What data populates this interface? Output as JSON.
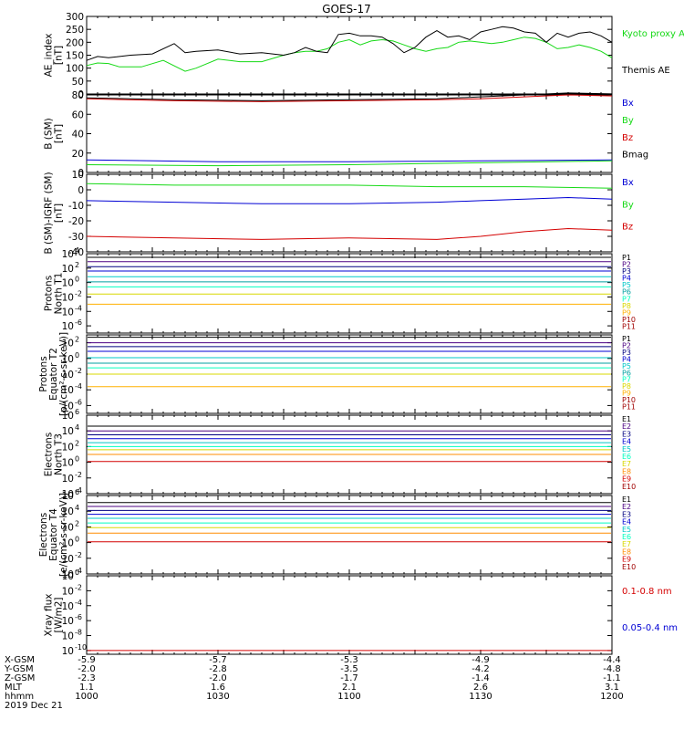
{
  "title": "GOES-17",
  "footer": {
    "row_labels": [
      "X-GSM",
      "Y-GSM",
      "Z-GSM",
      "MLT",
      "hhmm",
      "2019 Dec 21"
    ],
    "columns": [
      {
        "x_gsm": "-5.9",
        "y_gsm": "-2.0",
        "z_gsm": "-2.3",
        "mlt": "1.1",
        "hhmm": "1000"
      },
      {
        "x_gsm": "-5.7",
        "y_gsm": "-2.8",
        "z_gsm": "-2.0",
        "mlt": "1.6",
        "hhmm": "1030"
      },
      {
        "x_gsm": "-5.3",
        "y_gsm": "-3.5",
        "z_gsm": "-1.7",
        "mlt": "2.1",
        "hhmm": "1100"
      },
      {
        "x_gsm": "-4.9",
        "y_gsm": "-4.2",
        "z_gsm": "-1.4",
        "mlt": "2.6",
        "hhmm": "1130"
      },
      {
        "x_gsm": "-4.4",
        "y_gsm": "-4.8",
        "z_gsm": "-1.1",
        "mlt": "3.1",
        "hhmm": "1200"
      }
    ]
  },
  "colors": {
    "black": "#000000",
    "red": "#d40000",
    "green": "#16d916",
    "blue": "#0000d4",
    "navy": "#000080",
    "purple": "#4b0082",
    "cyan": "#00c8c8",
    "teal": "#00a0a0",
    "aqua": "#00ffc0",
    "yellow": "#d8d800",
    "orange": "#ff8c00",
    "gold": "#ffb000",
    "darkred": "#a00000",
    "maroon": "#800000"
  },
  "chart_data": [
    {
      "type": "line",
      "ylabel": [
        "AE_index",
        "[nT]"
      ],
      "ylim": [
        0,
        300
      ],
      "yticks": [
        "0",
        "50",
        "100",
        "150",
        "200",
        "250",
        "300"
      ],
      "series": [
        {
          "name": "Kyoto proxy AE",
          "color": "green",
          "x": [
            0,
            5,
            10,
            15,
            25,
            35,
            45,
            50,
            60,
            70,
            80,
            90,
            95,
            100,
            105,
            110,
            115,
            120,
            125,
            130,
            135,
            140,
            145,
            150,
            155,
            160,
            165,
            170,
            175,
            180,
            185,
            190,
            195,
            200,
            205,
            210,
            215,
            220,
            225,
            230,
            235,
            240
          ],
          "y": [
            110,
            120,
            118,
            105,
            105,
            130,
            88,
            100,
            135,
            125,
            125,
            150,
            160,
            165,
            165,
            175,
            200,
            210,
            190,
            205,
            210,
            205,
            190,
            175,
            165,
            175,
            180,
            200,
            205,
            200,
            195,
            200,
            210,
            220,
            215,
            200,
            175,
            180,
            190,
            180,
            165,
            140
          ]
        },
        {
          "name": "Themis AE",
          "color": "black",
          "x": [
            0,
            5,
            10,
            20,
            30,
            40,
            45,
            50,
            60,
            70,
            80,
            90,
            95,
            100,
            105,
            110,
            115,
            120,
            125,
            130,
            135,
            140,
            145,
            150,
            155,
            160,
            165,
            170,
            175,
            180,
            185,
            190,
            195,
            200,
            205,
            210,
            215,
            220,
            225,
            230,
            235,
            240
          ],
          "y": [
            130,
            145,
            140,
            150,
            155,
            195,
            160,
            165,
            170,
            155,
            160,
            150,
            160,
            180,
            165,
            160,
            230,
            235,
            225,
            225,
            220,
            195,
            160,
            180,
            220,
            245,
            220,
            225,
            210,
            240,
            250,
            260,
            255,
            240,
            235,
            200,
            235,
            220,
            235,
            240,
            225,
            200
          ]
        }
      ]
    },
    {
      "type": "line",
      "ylabel": [
        "B (SM)",
        "[nT]"
      ],
      "ylim": [
        0,
        80
      ],
      "yticks": [
        "0",
        "20",
        "40",
        "60",
        "80"
      ],
      "series": [
        {
          "name": "Bx",
          "color": "blue",
          "x": [
            0,
            60,
            120,
            180,
            240
          ],
          "y": [
            13,
            11,
            11,
            12,
            13
          ]
        },
        {
          "name": "By",
          "color": "green",
          "x": [
            0,
            60,
            120,
            180,
            240
          ],
          "y": [
            8,
            7,
            8,
            10,
            12
          ]
        },
        {
          "name": "Bz",
          "color": "red",
          "x": [
            0,
            40,
            80,
            120,
            160,
            180,
            200,
            220,
            240
          ],
          "y": [
            76,
            74,
            73,
            74,
            75,
            76,
            78,
            80,
            79
          ]
        },
        {
          "name": "Bmag",
          "color": "black",
          "x": [
            0,
            40,
            80,
            120,
            160,
            180,
            200,
            220,
            240
          ],
          "y": [
            77,
            75,
            74,
            75,
            76,
            78,
            80,
            82,
            81
          ]
        }
      ]
    },
    {
      "type": "line",
      "ylabel": [
        "B (SM)-IGRF (SM)",
        "[nT]"
      ],
      "ylim": [
        -40,
        10
      ],
      "yticks": [
        "-40",
        "-30",
        "-20",
        "-10",
        "0",
        "10"
      ],
      "series": [
        {
          "name": "Bx",
          "color": "blue",
          "x": [
            0,
            40,
            80,
            120,
            160,
            180,
            200,
            220,
            240
          ],
          "y": [
            -7,
            -8,
            -9,
            -9,
            -8,
            -7,
            -6,
            -5,
            -6
          ]
        },
        {
          "name": "By",
          "color": "green",
          "x": [
            0,
            40,
            80,
            120,
            160,
            200,
            240
          ],
          "y": [
            4,
            3,
            3,
            3,
            2,
            2,
            1
          ]
        },
        {
          "name": "Bz",
          "color": "red",
          "x": [
            0,
            40,
            80,
            120,
            160,
            180,
            200,
            220,
            240
          ],
          "y": [
            -30,
            -31,
            -32,
            -31,
            -32,
            -30,
            -27,
            -25,
            -26
          ]
        }
      ]
    },
    {
      "type": "line",
      "log": true,
      "ylabel": [
        "Protons",
        "North T1"
      ],
      "ylim_exp": [
        -7,
        4
      ],
      "yticks_exp": [
        -6,
        -4,
        -2,
        0,
        2,
        4
      ],
      "series": [
        {
          "name": "P1",
          "color": "black",
          "log10": 3.5
        },
        {
          "name": "P2",
          "color": "purple",
          "log10": 2.9
        },
        {
          "name": "P3",
          "color": "navy",
          "log10": 2.2
        },
        {
          "name": "P4",
          "color": "blue",
          "log10": 1.6
        },
        {
          "name": "P5",
          "color": "cyan",
          "log10": 0.8
        },
        {
          "name": "P6",
          "color": "teal",
          "log10": 0.1
        },
        {
          "name": "P7",
          "color": "aqua",
          "log10": -0.6
        },
        {
          "name": "P8",
          "color": "yellow",
          "log10": -1.6
        },
        {
          "name": "P9",
          "color": "gold",
          "log10": -3.0
        }
      ],
      "legend": [
        "P1",
        "P2",
        "P3",
        "P4",
        "P5",
        "P6",
        "P7",
        "P8",
        "P9",
        "P10",
        "P11"
      ]
    },
    {
      "type": "line",
      "log": true,
      "ylabel": [
        "Protons",
        "Equator T2",
        "[p/(cm²-s-sr-keV)]"
      ],
      "ylim_exp": [
        -7,
        3
      ],
      "yticks_exp": [
        -6,
        -4,
        -2,
        0,
        2
      ],
      "series": [
        {
          "name": "P1",
          "color": "black",
          "log10": 2.7
        },
        {
          "name": "P2",
          "color": "purple",
          "log10": 2.0
        },
        {
          "name": "P3",
          "color": "navy",
          "log10": 1.5
        },
        {
          "name": "P4",
          "color": "blue",
          "log10": 0.9
        },
        {
          "name": "P5",
          "color": "cyan",
          "log10": 0.1
        },
        {
          "name": "P6",
          "color": "teal",
          "log10": -0.6
        },
        {
          "name": "P7",
          "color": "aqua",
          "log10": -1.2
        },
        {
          "name": "P8",
          "color": "yellow",
          "log10": -2.0
        },
        {
          "name": "P9",
          "color": "gold",
          "log10": -3.6
        }
      ],
      "legend": [
        "P1",
        "P2",
        "P3",
        "P4",
        "P5",
        "P6",
        "P7",
        "P8",
        "P9",
        "P10",
        "P11"
      ]
    },
    {
      "type": "line",
      "log": true,
      "ylabel": [
        "Electrons",
        "North T3"
      ],
      "ylim_exp": [
        -4,
        6
      ],
      "yticks_exp": [
        -4,
        -2,
        0,
        2,
        4,
        6
      ],
      "series": [
        {
          "name": "E1",
          "color": "black",
          "log10": 4.6
        },
        {
          "name": "E2",
          "color": "purple",
          "log10": 4.0
        },
        {
          "name": "E3",
          "color": "navy",
          "log10": 3.5
        },
        {
          "name": "E4",
          "color": "blue",
          "log10": 3.0
        },
        {
          "name": "E5",
          "color": "cyan",
          "log10": 2.5
        },
        {
          "name": "E6",
          "color": "aqua",
          "log10": 2.0
        },
        {
          "name": "E7",
          "color": "yellow",
          "log10": 1.6
        },
        {
          "name": "E8",
          "color": "orange",
          "log10": 1.0
        },
        {
          "name": "E9",
          "color": "red",
          "log10": 0.1
        }
      ],
      "legend": [
        "E1",
        "E2",
        "E3",
        "E4",
        "E5",
        "E6",
        "E7",
        "E8",
        "E9",
        "E10"
      ]
    },
    {
      "type": "line",
      "log": true,
      "ylabel": [
        "Electrons",
        "Equator T4",
        "[e/(cm²-s-sr-keV)]"
      ],
      "ylim_exp": [
        -4,
        6
      ],
      "yticks_exp": [
        -4,
        -2,
        0,
        2,
        4,
        6
      ],
      "series": [
        {
          "name": "E1",
          "color": "black",
          "log10": 5.1
        },
        {
          "name": "E2",
          "color": "purple",
          "log10": 4.6
        },
        {
          "name": "E3",
          "color": "navy",
          "log10": 4.1
        },
        {
          "name": "E4",
          "color": "blue",
          "log10": 3.6
        },
        {
          "name": "E5",
          "color": "cyan",
          "log10": 3.1
        },
        {
          "name": "E6",
          "color": "aqua",
          "log10": 2.5
        },
        {
          "name": "E7",
          "color": "yellow",
          "log10": 1.9
        },
        {
          "name": "E8",
          "color": "orange",
          "log10": 1.2
        },
        {
          "name": "E9",
          "color": "red",
          "log10": 0.1
        }
      ],
      "legend": [
        "E1",
        "E2",
        "E3",
        "E4",
        "E5",
        "E6",
        "E7",
        "E8",
        "E9",
        "E10"
      ]
    },
    {
      "type": "line",
      "log": true,
      "ylabel": [
        "Xray flux",
        "[W/m2]"
      ],
      "ylim_exp": [
        -10.5,
        0
      ],
      "yticks_exp": [
        -10,
        -8,
        -6,
        -4,
        -2,
        0
      ],
      "series": [
        {
          "name": "0.1-0.8 nm",
          "color": "red",
          "log10": -10
        }
      ],
      "legend": [
        "0.1-0.8 nm",
        "0.05-0.4 nm"
      ],
      "legend_colors": [
        "red",
        "blue"
      ]
    }
  ]
}
